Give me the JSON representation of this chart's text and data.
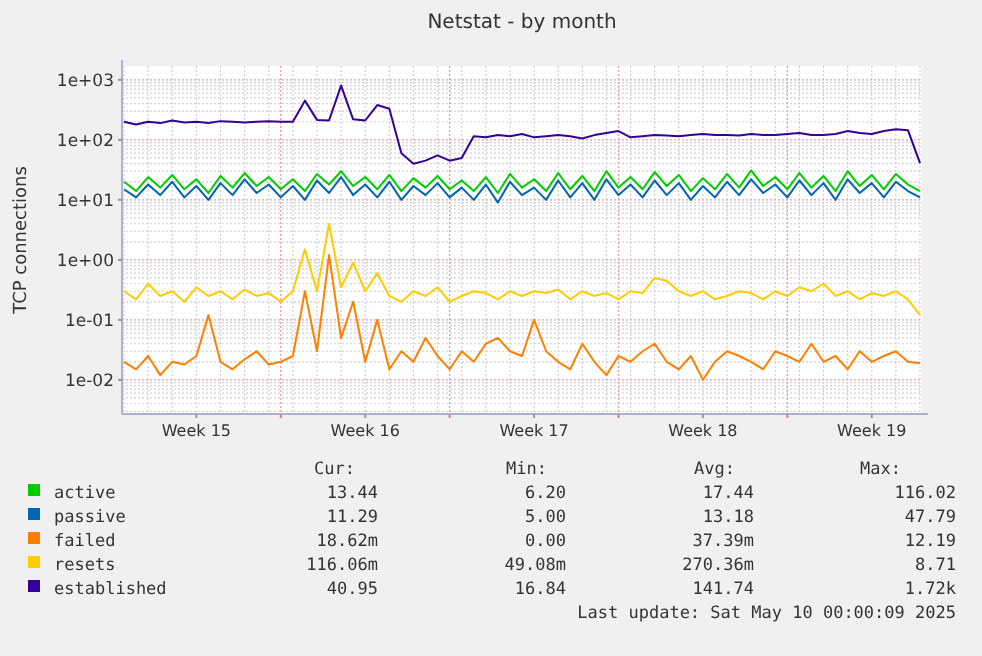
{
  "chart_data": {
    "type": "line",
    "title": "Netstat - by month",
    "ylabel": "TCP connections",
    "log": true,
    "grid": true,
    "legend": "bottom",
    "marker": "none",
    "line_style": "solid",
    "categories": [
      null,
      null,
      null,
      null,
      null,
      null,
      "Week 15",
      null,
      null,
      null,
      null,
      null,
      null,
      null,
      null,
      null,
      null,
      null,
      null,
      null,
      "Week 16",
      null,
      null,
      null,
      null,
      null,
      null,
      null,
      null,
      null,
      null,
      null,
      null,
      null,
      "Week 17",
      null,
      null,
      null,
      null,
      null,
      null,
      null,
      null,
      null,
      null,
      null,
      null,
      null,
      "Week 18",
      null,
      null,
      null,
      null,
      null,
      null,
      null,
      null,
      null,
      null,
      null,
      null,
      null,
      "Week 19",
      null,
      null,
      null,
      null
    ],
    "ylim": [
      0.0027,
      1700
    ],
    "yticks": [
      {
        "value": 0.01,
        "label": "1e-02"
      },
      {
        "value": 0.1,
        "label": "1e-01"
      },
      {
        "value": 1,
        "label": "1e+00"
      },
      {
        "value": 10,
        "label": "1e+01"
      },
      {
        "value": 100,
        "label": "1e+02"
      },
      {
        "value": 1000,
        "label": "1e+03"
      }
    ],
    "series": [
      {
        "name": "active",
        "color": "#00cc00",
        "values": [
          20,
          14,
          24,
          16,
          26,
          15,
          22,
          13,
          25,
          16,
          28,
          17,
          24,
          15,
          22,
          14,
          27,
          18,
          30,
          17,
          24,
          15,
          26,
          14,
          23,
          16,
          25,
          15,
          21,
          14,
          24,
          13,
          27,
          16,
          22,
          14,
          28,
          15,
          25,
          14,
          30,
          16,
          24,
          15,
          29,
          17,
          26,
          14,
          23,
          15,
          27,
          16,
          31,
          17,
          24,
          15,
          28,
          16,
          25,
          14,
          30,
          17,
          26,
          15,
          27,
          18,
          14
        ]
      },
      {
        "name": "passive",
        "color": "#0066b3",
        "values": [
          15,
          11,
          18,
          12,
          20,
          11,
          17,
          10,
          19,
          12,
          22,
          13,
          18,
          11,
          17,
          10,
          21,
          13,
          24,
          12,
          18,
          11,
          20,
          10,
          17,
          12,
          19,
          11,
          16,
          10,
          18,
          9,
          20,
          12,
          16,
          10,
          21,
          11,
          19,
          10,
          22,
          12,
          18,
          11,
          21,
          12,
          19,
          10,
          17,
          11,
          20,
          12,
          22,
          13,
          18,
          11,
          21,
          12,
          19,
          10,
          22,
          13,
          19,
          11,
          20,
          14,
          11
        ]
      },
      {
        "name": "failed",
        "color": "#ff8000",
        "values": [
          0.02,
          0.015,
          0.025,
          0.012,
          0.02,
          0.018,
          0.025,
          0.12,
          0.02,
          0.015,
          0.022,
          0.03,
          0.018,
          0.02,
          0.025,
          0.3,
          0.03,
          1.2,
          0.05,
          0.2,
          0.02,
          0.1,
          0.015,
          0.03,
          0.02,
          0.05,
          0.025,
          0.015,
          0.03,
          0.02,
          0.04,
          0.05,
          0.03,
          0.025,
          0.1,
          0.03,
          0.02,
          0.015,
          0.04,
          0.02,
          0.012,
          0.025,
          0.02,
          0.03,
          0.04,
          0.02,
          0.015,
          0.025,
          0.01,
          0.02,
          0.03,
          0.025,
          0.02,
          0.015,
          0.03,
          0.025,
          0.02,
          0.04,
          0.02,
          0.025,
          0.015,
          0.03,
          0.02,
          0.025,
          0.03,
          0.02,
          0.019
        ]
      },
      {
        "name": "resets",
        "color": "#ffcc00",
        "values": [
          0.3,
          0.22,
          0.4,
          0.25,
          0.3,
          0.2,
          0.35,
          0.25,
          0.3,
          0.22,
          0.32,
          0.25,
          0.28,
          0.2,
          0.3,
          1.5,
          0.3,
          4,
          0.35,
          0.9,
          0.3,
          0.6,
          0.25,
          0.2,
          0.3,
          0.25,
          0.35,
          0.2,
          0.25,
          0.3,
          0.28,
          0.22,
          0.3,
          0.25,
          0.3,
          0.28,
          0.32,
          0.22,
          0.3,
          0.25,
          0.28,
          0.22,
          0.3,
          0.28,
          0.5,
          0.45,
          0.3,
          0.25,
          0.3,
          0.22,
          0.25,
          0.3,
          0.28,
          0.22,
          0.3,
          0.25,
          0.35,
          0.3,
          0.4,
          0.25,
          0.3,
          0.22,
          0.28,
          0.25,
          0.3,
          0.22,
          0.12
        ]
      },
      {
        "name": "established",
        "color": "#330099",
        "values": [
          200,
          180,
          200,
          190,
          210,
          195,
          200,
          190,
          205,
          200,
          195,
          200,
          205,
          200,
          200,
          450,
          215,
          210,
          800,
          220,
          210,
          380,
          330,
          60,
          40,
          45,
          55,
          45,
          50,
          115,
          110,
          120,
          115,
          125,
          110,
          115,
          120,
          115,
          105,
          120,
          130,
          140,
          110,
          115,
          120,
          118,
          115,
          120,
          125,
          120,
          120,
          118,
          125,
          120,
          120,
          125,
          130,
          120,
          120,
          125,
          140,
          130,
          125,
          140,
          150,
          145,
          41
        ]
      }
    ],
    "annotations": [
      "Cur:",
      "Min:",
      "Avg:",
      "Max:",
      "13.44",
      "6.20",
      "17.44",
      "116.02",
      "11.29",
      "5.00",
      "13.18",
      "47.79",
      "18.62m",
      "0.00",
      "37.39m",
      "12.19",
      "116.06m",
      "49.08m",
      "270.36m",
      "8.71",
      "40.95",
      "16.84",
      "141.74",
      "1.72k",
      "Last update: Sat May 10 00:00:09 2025"
    ]
  }
}
